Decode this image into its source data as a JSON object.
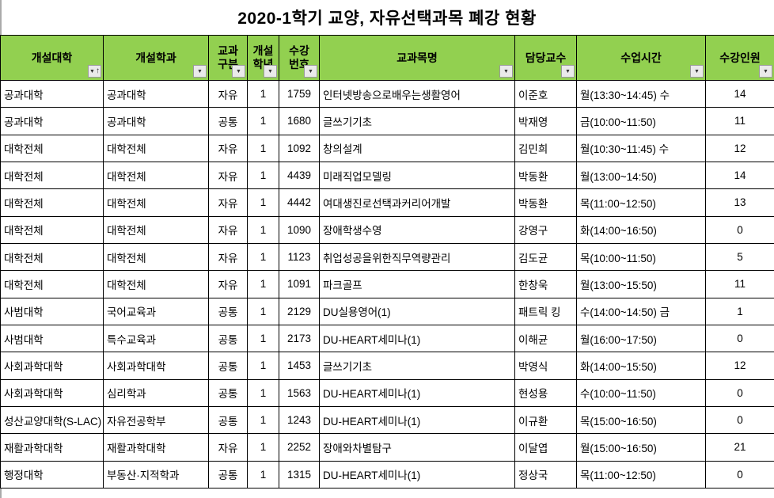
{
  "title": "2020-1학기 교양, 자유선택과목 폐강 현황",
  "colors": {
    "header_bg": "#92D050",
    "grid_border": "#000000",
    "title_text": "#000000",
    "filter_button_bg": "#EAEAEA"
  },
  "table": {
    "columns": [
      {
        "id": "college",
        "label": "개설대학",
        "align": "left",
        "sorted": "asc",
        "filter_icon": "filter-sort-asc-icon"
      },
      {
        "id": "department",
        "label": "개설학과",
        "align": "left",
        "sorted": null,
        "filter_icon": "filter-dropdown-icon"
      },
      {
        "id": "course-type",
        "label": "교과\n구분",
        "align": "center",
        "sorted": null,
        "filter_icon": "filter-dropdown-icon"
      },
      {
        "id": "year",
        "label": "개설\n학년",
        "align": "center",
        "sorted": null,
        "filter_icon": "filter-dropdown-icon"
      },
      {
        "id": "course-no",
        "label": "수강\n번호",
        "align": "center",
        "sorted": null,
        "filter_icon": "filter-dropdown-icon"
      },
      {
        "id": "course-name",
        "label": "교과목명",
        "align": "left",
        "sorted": null,
        "filter_icon": "filter-dropdown-icon"
      },
      {
        "id": "professor",
        "label": "담당교수",
        "align": "left",
        "sorted": null,
        "filter_icon": "filter-dropdown-icon"
      },
      {
        "id": "class-time",
        "label": "수업시간",
        "align": "left",
        "sorted": null,
        "filter_icon": "filter-dropdown-icon"
      },
      {
        "id": "enrollment",
        "label": "수강인원",
        "align": "center",
        "sorted": null,
        "filter_icon": "filter-dropdown-icon"
      }
    ],
    "rows": [
      [
        "공과대학",
        "공과대학",
        "자유",
        "1",
        "1759",
        "인터넷방송으로배우는생활영어",
        "이준호",
        "월(13:30~14:45) 수",
        "14"
      ],
      [
        "공과대학",
        "공과대학",
        "공통",
        "1",
        "1680",
        "글쓰기기초",
        "박재영",
        "금(10:00~11:50)",
        "11"
      ],
      [
        "대학전체",
        "대학전체",
        "자유",
        "1",
        "1092",
        "창의설계",
        "김민희",
        "월(10:30~11:45) 수",
        "12"
      ],
      [
        "대학전체",
        "대학전체",
        "자유",
        "1",
        "4439",
        "미래직업모델링",
        "박동환",
        "월(13:00~14:50)",
        "14"
      ],
      [
        "대학전체",
        "대학전체",
        "자유",
        "1",
        "4442",
        "여대생진로선택과커리어개발",
        "박동환",
        "목(11:00~12:50)",
        "13"
      ],
      [
        "대학전체",
        "대학전체",
        "자유",
        "1",
        "1090",
        "장애학생수영",
        "강영구",
        "화(14:00~16:50)",
        "0"
      ],
      [
        "대학전체",
        "대학전체",
        "자유",
        "1",
        "1123",
        "취업성공을위한직무역량관리",
        "김도균",
        "목(10:00~11:50)",
        "5"
      ],
      [
        "대학전체",
        "대학전체",
        "자유",
        "1",
        "1091",
        "파크골프",
        "한창욱",
        "월(13:00~15:50)",
        "11"
      ],
      [
        "사범대학",
        "국어교육과",
        "공통",
        "1",
        "2129",
        "DU실용영어(1)",
        "패트릭 킹",
        "수(14:00~14:50) 금",
        "1"
      ],
      [
        "사범대학",
        "특수교육과",
        "공통",
        "1",
        "2173",
        "DU-HEART세미나(1)",
        "이해균",
        "월(16:00~17:50)",
        "0"
      ],
      [
        "사회과학대학",
        "사회과학대학",
        "공통",
        "1",
        "1453",
        "글쓰기기초",
        "박영식",
        "화(14:00~15:50)",
        "12"
      ],
      [
        "사회과학대학",
        "심리학과",
        "공통",
        "1",
        "1563",
        "DU-HEART세미나(1)",
        "현성용",
        "수(10:00~11:50)",
        "0"
      ],
      [
        "성산교양대학(S-LAC)",
        "자유전공학부",
        "공통",
        "1",
        "1243",
        "DU-HEART세미나(1)",
        "이규환",
        "목(15:00~16:50)",
        "0"
      ],
      [
        "재활과학대학",
        "재활과학대학",
        "자유",
        "1",
        "2252",
        "장애와차별탐구",
        "이달엽",
        "월(15:00~16:50)",
        "21"
      ],
      [
        "행정대학",
        "부동산·지적학과",
        "공통",
        "1",
        "1315",
        "DU-HEART세미나(1)",
        "정상국",
        "목(11:00~12:50)",
        "0"
      ]
    ]
  }
}
